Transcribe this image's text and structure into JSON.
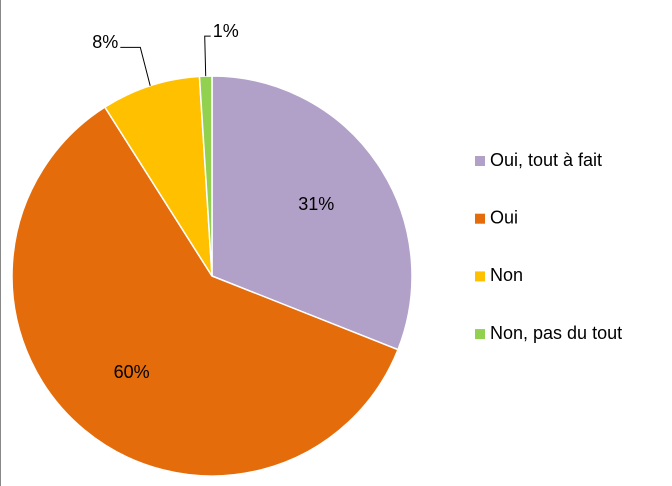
{
  "chart_data": {
    "type": "pie",
    "categories": [
      "Oui, tout à fait",
      "Oui",
      "Non",
      "Non, pas du tout"
    ],
    "values": [
      31,
      60,
      8,
      1
    ],
    "value_labels": [
      "31%",
      "60%",
      "8%",
      "1%"
    ],
    "colors": [
      "#b1a0c7",
      "#e46c0a",
      "#ffc000",
      "#92d050"
    ],
    "legend": "right"
  }
}
